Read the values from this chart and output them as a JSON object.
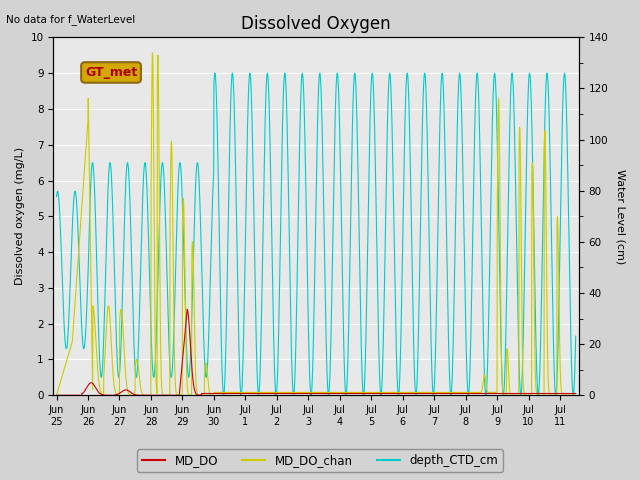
{
  "title": "Dissolved Oxygen",
  "top_left_text": "No data for f_WaterLevel",
  "ylabel_left": "Dissolved oxygen (mg/L)",
  "ylabel_right": "Water Level (cm)",
  "ylim_left": [
    0,
    10.0
  ],
  "ylim_right": [
    0,
    140
  ],
  "yticks_left": [
    0.0,
    1.0,
    2.0,
    3.0,
    4.0,
    5.0,
    6.0,
    7.0,
    8.0,
    9.0,
    10.0
  ],
  "yticks_right": [
    0,
    20,
    40,
    60,
    80,
    100,
    120,
    140
  ],
  "background_color": "#d3d3d3",
  "plot_bg_color": "#e8e8e8",
  "gt_met_label": "GT_met",
  "gt_met_facecolor": "#d4a800",
  "gt_met_edgecolor": "#8b6914",
  "gt_met_text_color": "#aa0000",
  "legend_labels": [
    "MD_DO",
    "MD_DO_chan",
    "depth_CTD_cm"
  ],
  "md_do_color": "#cc0000",
  "md_do_chan_color": "#cccc00",
  "depth_ctd_color": "#00cccc",
  "x_start_day": 0,
  "x_end_day": 16.5,
  "tick_positions": [
    1,
    2,
    3,
    4,
    5,
    6,
    7,
    8,
    9,
    10,
    11,
    12,
    13,
    14,
    15,
    16
  ],
  "tick_labels": [
    "Jun\n26",
    "Jun\n27",
    "Jun\n28",
    "Jun\n29",
    "Jun\n30",
    "Jul\n1",
    "Jul\n2",
    "Jul\n3",
    "Jul\n4",
    "Jul\n5",
    "Jul\n6",
    "Jul\n7",
    "Jul\n8",
    "Jul\n9",
    "Jul\n10",
    "Jul\n11"
  ],
  "first_tick_label": "Jun\n25",
  "xlim": [
    -0.1,
    16.6
  ]
}
